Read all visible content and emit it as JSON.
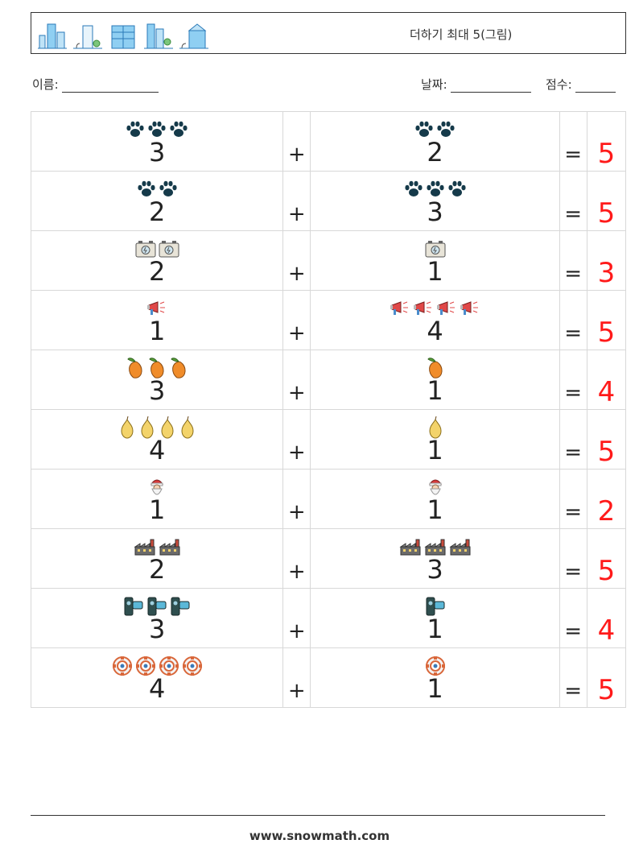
{
  "header": {
    "title": "더하기 최대 5(그림)"
  },
  "meta": {
    "name_label": "이름:",
    "date_label": "날짜:",
    "score_label": "점수:"
  },
  "rows": [
    {
      "a": "3",
      "a_icon": "paw-icon",
      "op": "+",
      "b": "2",
      "b_icon": "paw-icon",
      "eq": "=",
      "ans": "5"
    },
    {
      "a": "2",
      "a_icon": "paw-icon",
      "op": "+",
      "b": "3",
      "b_icon": "paw-icon",
      "eq": "=",
      "ans": "5"
    },
    {
      "a": "2",
      "a_icon": "battery-icon",
      "op": "+",
      "b": "1",
      "b_icon": "battery-icon",
      "eq": "=",
      "ans": "3"
    },
    {
      "a": "1",
      "a_icon": "megaphone-icon",
      "op": "+",
      "b": "4",
      "b_icon": "megaphone-icon",
      "eq": "=",
      "ans": "5"
    },
    {
      "a": "3",
      "a_icon": "mango-icon",
      "op": "+",
      "b": "1",
      "b_icon": "mango-icon",
      "eq": "=",
      "ans": "4"
    },
    {
      "a": "4",
      "a_icon": "pear-icon",
      "op": "+",
      "b": "1",
      "b_icon": "pear-icon",
      "eq": "=",
      "ans": "5"
    },
    {
      "a": "1",
      "a_icon": "santa-icon",
      "op": "+",
      "b": "1",
      "b_icon": "santa-icon",
      "eq": "=",
      "ans": "2"
    },
    {
      "a": "2",
      "a_icon": "factory-icon",
      "op": "+",
      "b": "3",
      "b_icon": "factory-icon",
      "eq": "=",
      "ans": "5"
    },
    {
      "a": "3",
      "a_icon": "camera-icon",
      "op": "+",
      "b": "1",
      "b_icon": "camera-icon",
      "eq": "=",
      "ans": "4"
    },
    {
      "a": "4",
      "a_icon": "lifebuoy-icon",
      "op": "+",
      "b": "1",
      "b_icon": "lifebuoy-icon",
      "eq": "=",
      "ans": "5"
    }
  ],
  "footer": {
    "url": "www.snowmath.com"
  },
  "colors": {
    "answer": "#ff1a1a",
    "border": "#d8d8d8"
  }
}
